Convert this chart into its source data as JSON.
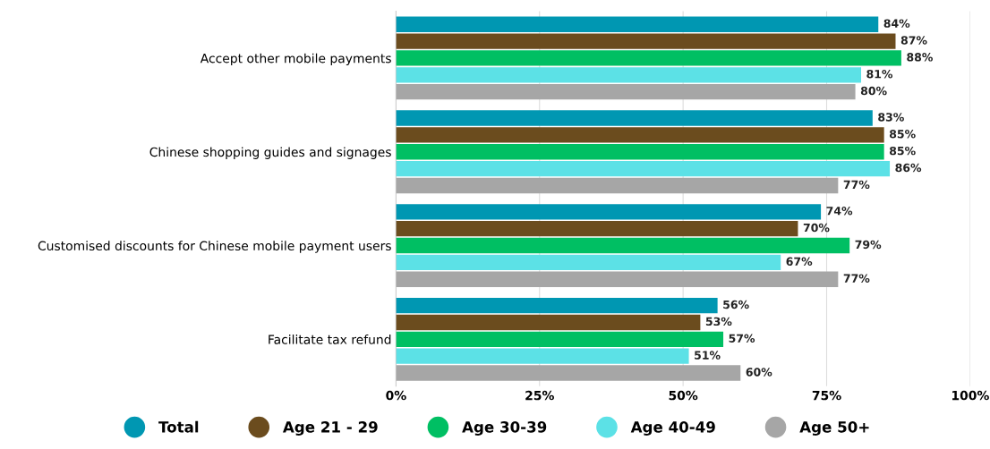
{
  "chart_data": {
    "type": "bar",
    "orientation": "horizontal",
    "categories": [
      "Accept other mobile payments",
      "Chinese shopping guides and signages",
      "Customised discounts for Chinese mobile payment users",
      "Facilitate tax refund"
    ],
    "series": [
      {
        "name": "Total",
        "color": "#0097b2",
        "values": [
          84,
          83,
          74,
          56
        ],
        "value_labels": [
          "84%",
          "83%",
          "74%",
          "56%"
        ]
      },
      {
        "name": "Age 21 - 29",
        "color": "#6b4c1e",
        "values": [
          87,
          85,
          70,
          53
        ],
        "value_labels": [
          "87%",
          "85%",
          "70%",
          "53%"
        ]
      },
      {
        "name": "Age 30-39",
        "color": "#00bf63",
        "values": [
          88,
          85,
          79,
          57
        ],
        "value_labels": [
          "88%",
          "85%",
          "79%",
          "57%"
        ]
      },
      {
        "name": "Age 40-49",
        "color": "#5ce1e6",
        "values": [
          81,
          86,
          67,
          51
        ],
        "value_labels": [
          "81%",
          "86%",
          "67%",
          "51%"
        ]
      },
      {
        "name": "Age 50+",
        "color": "#a6a6a6",
        "values": [
          80,
          77,
          77,
          60
        ],
        "value_labels": [
          "80%",
          "77%",
          "77%",
          "60%"
        ]
      }
    ],
    "xlim": [
      0,
      100
    ],
    "xticks": [
      {
        "value": 0,
        "label": "0%"
      },
      {
        "value": 25,
        "label": "25%"
      },
      {
        "value": 50,
        "label": "50%"
      },
      {
        "value": 75,
        "label": "75%"
      },
      {
        "value": 100,
        "label": "100%"
      }
    ],
    "grid": "x",
    "legend": "bottom",
    "marker": "circle"
  }
}
